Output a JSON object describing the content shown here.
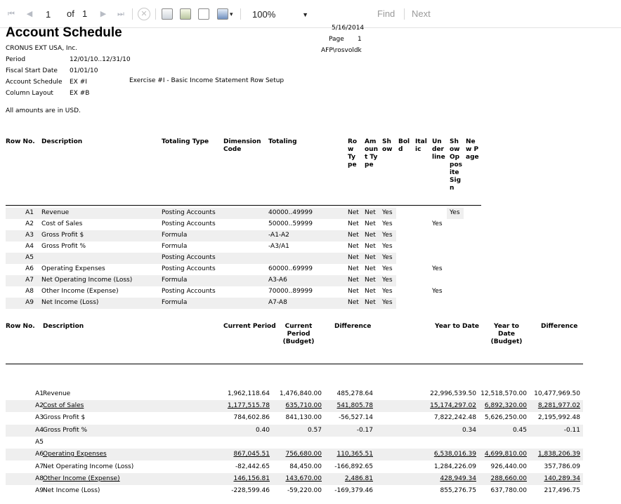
{
  "toolbar": {
    "page_value": "1",
    "of_label": "of",
    "total_pages": "1",
    "zoom_value": "100%",
    "find_label": "Find",
    "next_label": "Next"
  },
  "header": {
    "title": "Account Schedule",
    "company": "CRONUS EXT USA, Inc.",
    "date": "5/16/2014",
    "page_label": "Page",
    "page_num": "1",
    "user": "AFP\\rosvoldk",
    "period_label": "Period",
    "period_value": "12/01/10..12/31/10",
    "fiscal_label": "Fiscal Start Date",
    "fiscal_value": "01/01/10",
    "schedule_label": "Account Schedule",
    "schedule_value": "EX #I",
    "schedule_desc": "Exercise #I - Basic Income Statement Row Setup",
    "layout_label": "Column Layout",
    "layout_value": "EX #B",
    "amounts_note": "All amounts are in USD."
  },
  "setup_table": {
    "headers": {
      "row_no": "Row No.",
      "description": "Description",
      "totaling_type": "Totaling Type",
      "dimension_code": "Dimension Code",
      "totaling": "Totaling",
      "row_type": "Row Type",
      "amount_type": "Amount Type",
      "show": "Show",
      "bold": "Bold",
      "italic": "Italic",
      "underline": "Underline",
      "show_opposite_sign": "Show Opposite Sign",
      "new_page": "New Page"
    },
    "rows": [
      {
        "row_no": "A1",
        "description": "Revenue",
        "totaling_type": "Posting Accounts",
        "totaling": "40000..49999",
        "row_type": "Net",
        "amount_type": "Net",
        "show": "Yes",
        "underline": "",
        "opposite": "Yes"
      },
      {
        "row_no": "A2",
        "description": "Cost of Sales",
        "totaling_type": "Posting Accounts",
        "totaling": "50000..59999",
        "row_type": "Net",
        "amount_type": "Net",
        "show": "Yes",
        "underline": "Yes",
        "opposite": ""
      },
      {
        "row_no": "A3",
        "description": "Gross Profit $",
        "totaling_type": "Formula",
        "totaling": "-A1-A2",
        "row_type": "Net",
        "amount_type": "Net",
        "show": "Yes",
        "underline": "",
        "opposite": ""
      },
      {
        "row_no": "A4",
        "description": "Gross Profit %",
        "totaling_type": "Formula",
        "totaling": "-A3/A1",
        "row_type": "Net",
        "amount_type": "Net",
        "show": "Yes",
        "underline": "",
        "opposite": ""
      },
      {
        "row_no": "A5",
        "description": "",
        "totaling_type": "Posting Accounts",
        "totaling": "",
        "row_type": "Net",
        "amount_type": "Net",
        "show": "Yes",
        "underline": "",
        "opposite": ""
      },
      {
        "row_no": "A6",
        "description": "Operating Expenses",
        "totaling_type": "Posting Accounts",
        "totaling": "60000..69999",
        "row_type": "Net",
        "amount_type": "Net",
        "show": "Yes",
        "underline": "Yes",
        "opposite": ""
      },
      {
        "row_no": "A7",
        "description": "Net Operating Income (Loss)",
        "totaling_type": "Formula",
        "totaling": "A3-A6",
        "row_type": "Net",
        "amount_type": "Net",
        "show": "Yes",
        "underline": "",
        "opposite": ""
      },
      {
        "row_no": "A8",
        "description": "Other Income (Expense)",
        "totaling_type": "Posting Accounts",
        "totaling": "70000..89999",
        "row_type": "Net",
        "amount_type": "Net",
        "show": "Yes",
        "underline": "Yes",
        "opposite": ""
      },
      {
        "row_no": "A9",
        "description": "Net Income (Loss)",
        "totaling_type": "Formula",
        "totaling": "A7-A8",
        "row_type": "Net",
        "amount_type": "Net",
        "show": "Yes",
        "underline": "",
        "opposite": ""
      }
    ]
  },
  "results_table": {
    "headers": {
      "row_no": "Row No.",
      "description": "Description",
      "current_period": "Current Period",
      "current_budget": "Current Period (Budget)",
      "difference": "Difference",
      "ytd": "Year to Date",
      "ytd_budget": "Year to Date (Budget)",
      "ytd_difference": "Difference"
    },
    "rows": [
      {
        "row_no": "A1",
        "description": "Revenue",
        "cp": "1,962,118.64",
        "cpb": "1,476,840.00",
        "diff": "485,278.64",
        "ytd": "22,996,539.50",
        "ytdb": "12,518,570.00",
        "ytdd": "10,477,969.50",
        "underline": false,
        "shade": false
      },
      {
        "row_no": "A2",
        "description": "Cost of Sales",
        "cp": "1,177,515.78",
        "cpb": "635,710.00",
        "diff": "541,805.78",
        "ytd": "15,174,297.02",
        "ytdb": "6,892,320.00",
        "ytdd": "8,281,977.02",
        "underline": true,
        "shade": true
      },
      {
        "row_no": "A3",
        "description": "Gross Profit $",
        "cp": "784,602.86",
        "cpb": "841,130.00",
        "diff": "-56,527.14",
        "ytd": "7,822,242.48",
        "ytdb": "5,626,250.00",
        "ytdd": "2,195,992.48",
        "underline": false,
        "shade": false
      },
      {
        "row_no": "A4",
        "description": "Gross Profit %",
        "cp": "0.40",
        "cpb": "0.57",
        "diff": "-0.17",
        "ytd": "0.34",
        "ytdb": "0.45",
        "ytdd": "-0.11",
        "underline": false,
        "shade": true
      },
      {
        "row_no": "A5",
        "description": "",
        "cp": "",
        "cpb": "",
        "diff": "",
        "ytd": "",
        "ytdb": "",
        "ytdd": "",
        "underline": false,
        "shade": false
      },
      {
        "row_no": "A6",
        "description": "Operating Expenses",
        "cp": "867,045.51",
        "cpb": "756,680.00",
        "diff": "110,365.51",
        "ytd": "6,538,016.39",
        "ytdb": "4,699,810.00",
        "ytdd": "1,838,206.39",
        "underline": true,
        "shade": true
      },
      {
        "row_no": "A7",
        "description": "Net Operating Income (Loss)",
        "cp": "-82,442.65",
        "cpb": "84,450.00",
        "diff": "-166,892.65",
        "ytd": "1,284,226.09",
        "ytdb": "926,440.00",
        "ytdd": "357,786.09",
        "underline": false,
        "shade": false
      },
      {
        "row_no": "A8",
        "description": "Other Income (Expense)",
        "cp": "146,156.81",
        "cpb": "143,670.00",
        "diff": "2,486.81",
        "ytd": "428,949.34",
        "ytdb": "288,660.00",
        "ytdd": "140,289.34",
        "underline": true,
        "shade": true
      },
      {
        "row_no": "A9",
        "description": "Net Income (Loss)",
        "cp": "-228,599.46",
        "cpb": "-59,220.00",
        "diff": "-169,379.46",
        "ytd": "855,276.75",
        "ytdb": "637,780.00",
        "ytdd": "217,496.75",
        "underline": false,
        "shade": false
      }
    ]
  }
}
